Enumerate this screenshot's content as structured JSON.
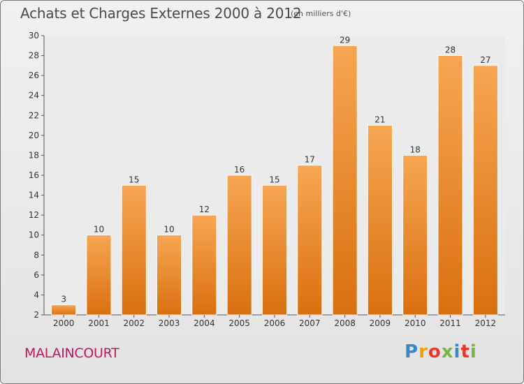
{
  "header": {
    "title": "Achats et Charges Externes 2000 à 2012",
    "unit": "(en milliers d'€)"
  },
  "footer": {
    "commune": "MALAINCOURT",
    "logo": [
      "P",
      "r",
      "o",
      "x",
      "i",
      "t",
      "i"
    ]
  },
  "colors": {
    "bar_top": "#f7a653",
    "bar_bottom": "#d9700f",
    "commune_text": "#c2185b",
    "logo": [
      "#3f86c7",
      "#f2a100",
      "#e8382f",
      "#7cb342",
      "#3f86c7",
      "#e8382f",
      "#7cb342"
    ]
  },
  "chart_data": {
    "type": "bar",
    "title": "Achats et Charges Externes 2000 à 2012",
    "subtitle": "(en milliers d'€)",
    "xlabel": "",
    "ylabel": "",
    "categories": [
      "2000",
      "2001",
      "2002",
      "2003",
      "2004",
      "2005",
      "2006",
      "2007",
      "2008",
      "2009",
      "2010",
      "2011",
      "2012"
    ],
    "values": [
      3,
      10,
      15,
      10,
      12,
      16,
      15,
      17,
      29,
      21,
      18,
      28,
      27
    ],
    "ylim": [
      2,
      30
    ],
    "yticks": [
      2,
      4,
      6,
      8,
      10,
      12,
      14,
      16,
      18,
      20,
      22,
      24,
      26,
      28,
      30
    ],
    "grid": false,
    "legend": "none"
  }
}
